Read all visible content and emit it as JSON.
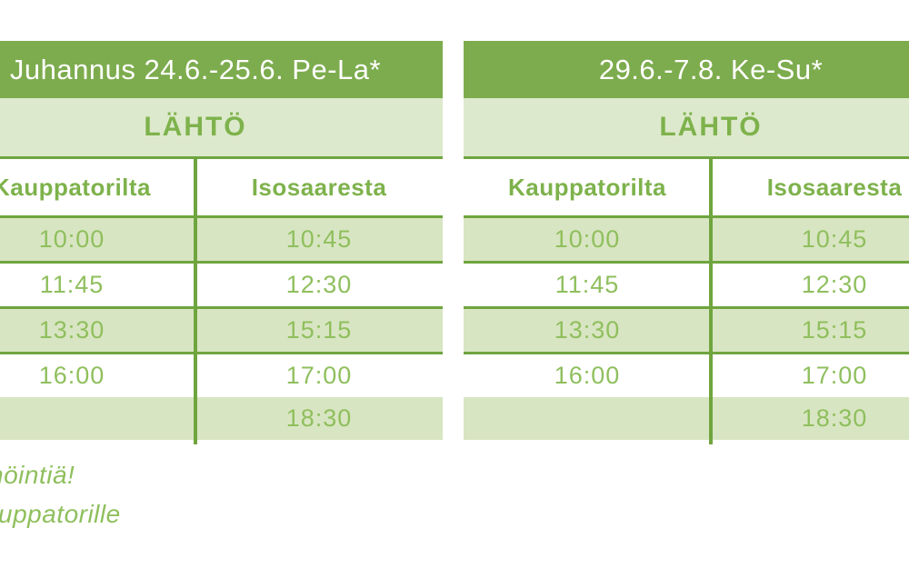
{
  "colors": {
    "header_bg": "#7dac4e",
    "band_bg": "#dde9cc",
    "row_shaded_bg": "#d8e5c2",
    "text_green": "#8fbf5d",
    "label_green": "#7eb24c",
    "border_green": "#6fa53e",
    "header_text": "#ffffff",
    "page_bg": "#ffffff"
  },
  "tables": [
    {
      "title": "Juhannus 24.6.-25.6. Pe-La*",
      "subheader": "LÄHTÖ",
      "columns": [
        "Kauppatorilta",
        "Isosaaresta"
      ],
      "rows": [
        [
          "10:00",
          "10:45"
        ],
        [
          "11:45",
          "12:30"
        ],
        [
          "13:30",
          "15:15"
        ],
        [
          "16:00",
          "17:00"
        ],
        [
          "",
          "18:30"
        ]
      ]
    },
    {
      "title": "29.6.-7.8. Ke-Su*",
      "subheader": "LÄHTÖ",
      "columns": [
        "Kauppatorilta",
        "Isosaaresta"
      ],
      "rows": [
        [
          "10:00",
          "10:45"
        ],
        [
          "11:45",
          "12:30"
        ],
        [
          "13:30",
          "15:15"
        ],
        [
          "16:00",
          "17:00"
        ],
        [
          "",
          "18:30"
        ]
      ]
    }
  ],
  "footnotes": [
    "nöintiä!",
    "uppatorille"
  ]
}
